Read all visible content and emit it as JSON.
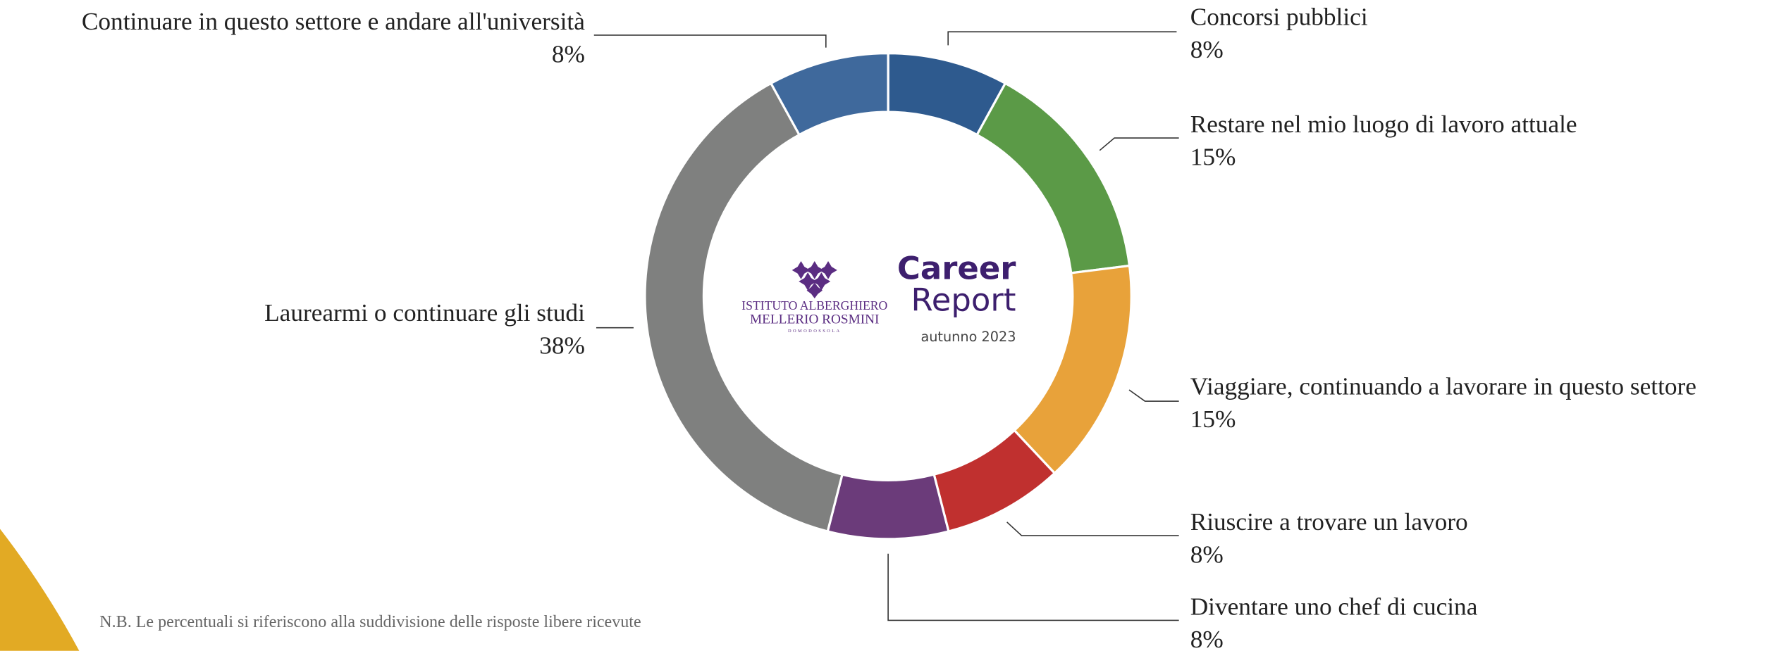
{
  "chart_data": {
    "type": "donut",
    "categories": [
      "Concorsi pubblici",
      "Restare nel mio luogo di lavoro attuale",
      "Viaggiare, continuando a lavorare in questo settore",
      "Riuscire a trovare un lavoro",
      "Diventare uno chef di cucina",
      "Laurearmi o continuare gli studi",
      "Continuare in questo settore e andare all'università"
    ],
    "values": [
      8,
      15,
      15,
      8,
      8,
      38,
      8
    ],
    "value_labels": [
      "8%",
      "15%",
      "15%",
      "8%",
      "8%",
      "38%",
      "8%"
    ],
    "colors": [
      "#2e5a8e",
      "#5b9a47",
      "#e8a23a",
      "#c0302f",
      "#6b3b7a",
      "#7f807f",
      "#3f699c"
    ],
    "logo": [
      "ISTITUTO ALBERGHIERO",
      "MELLERIO ROSMINI",
      "DOMODOSSOLA"
    ],
    "title": [
      "Career",
      "Report"
    ],
    "subtitle": "autunno 2023",
    "note": "N.B. Le percentuali si riferiscono alla suddivisione delle risposte libere ricevute"
  }
}
